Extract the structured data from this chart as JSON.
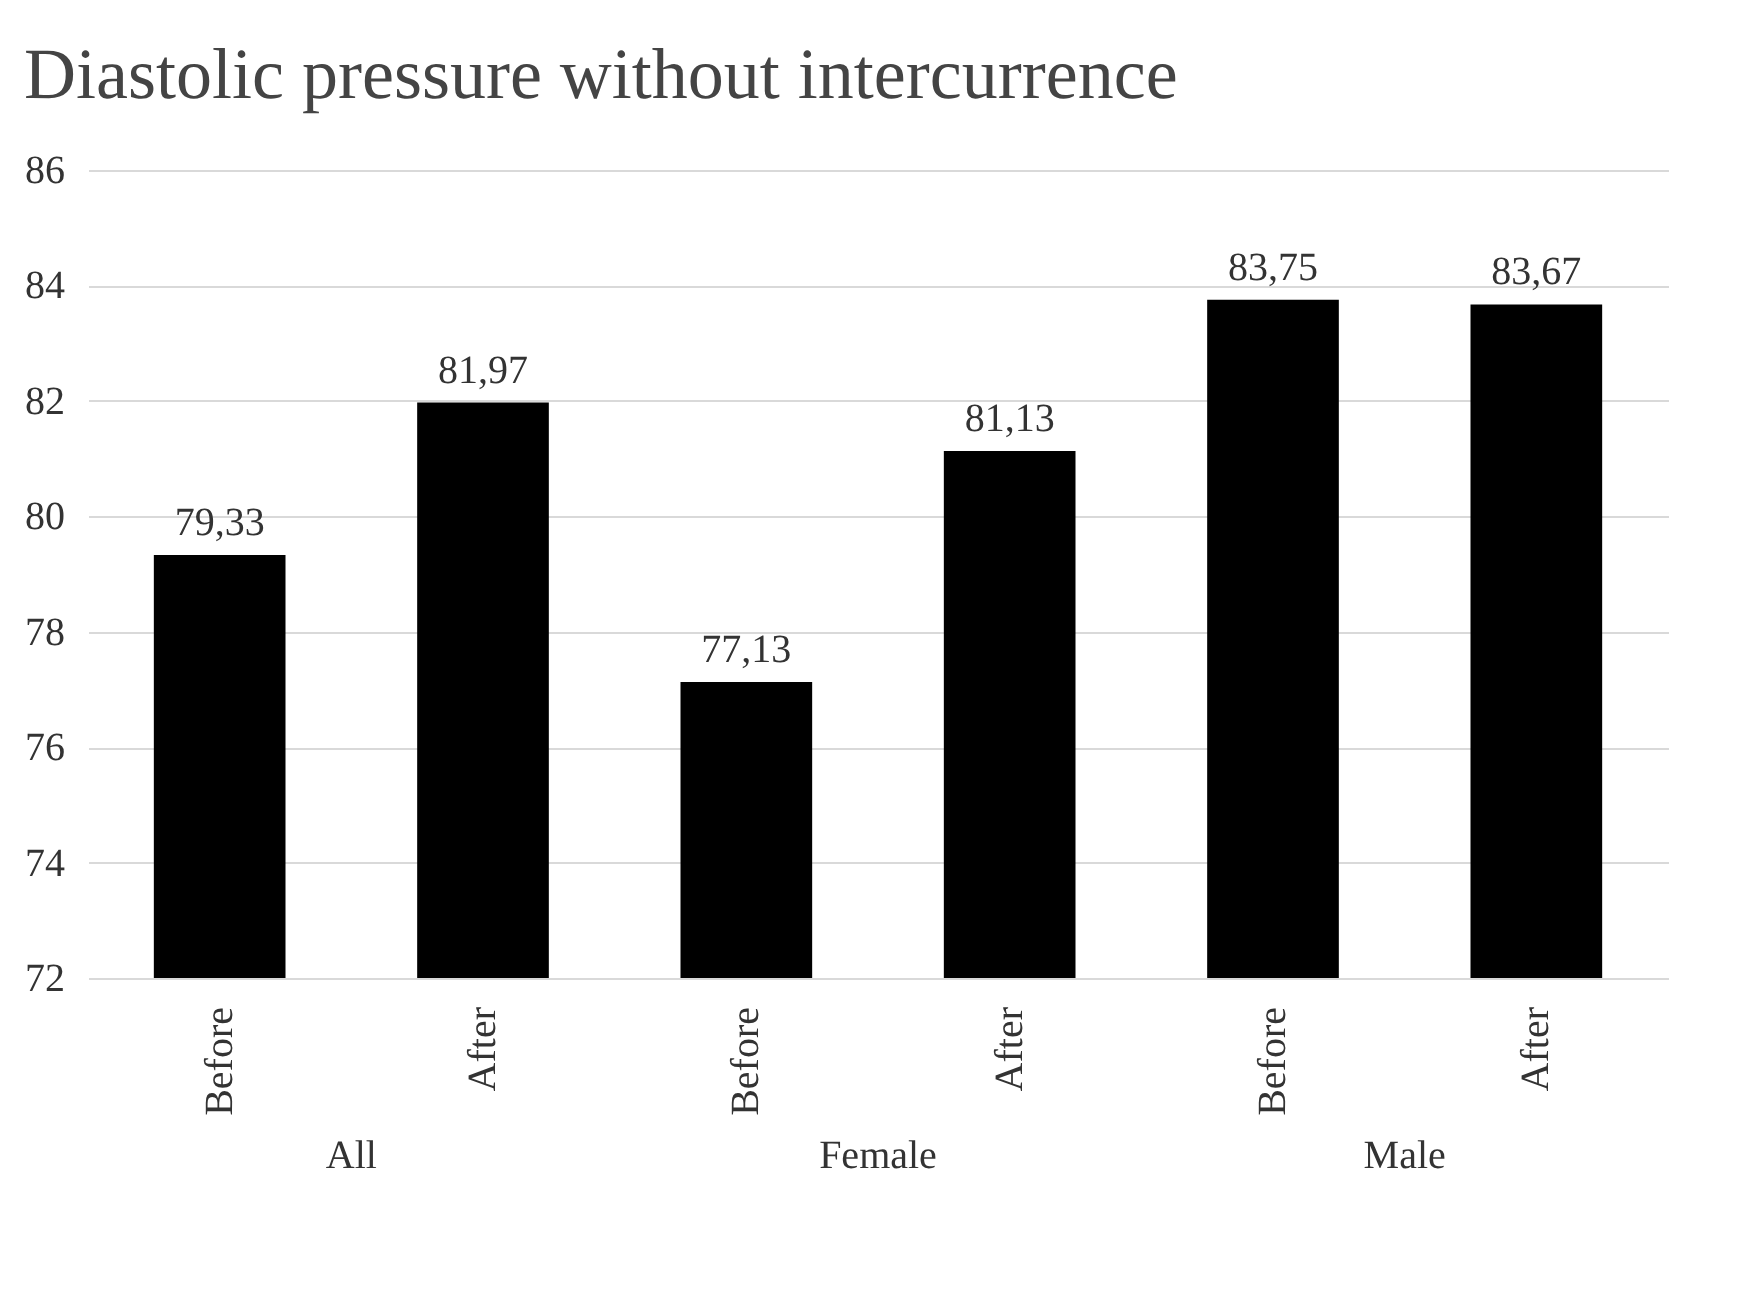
{
  "chart_data": {
    "type": "bar",
    "title": "Diastolic pressure without intercurrence",
    "categories": [
      "Before",
      "After",
      "Before",
      "After",
      "Before",
      "After"
    ],
    "values": [
      79.33,
      81.97,
      77.13,
      81.13,
      83.75,
      83.67
    ],
    "value_labels": [
      "79,33",
      "81,97",
      "77,13",
      "81,13",
      "83,75",
      "83,67"
    ],
    "colors": [
      "#000000",
      "#000000",
      "#000000",
      "#000000",
      "#000000",
      "#000000"
    ],
    "ylim": [
      72,
      86
    ],
    "yticks": [
      72,
      74,
      76,
      78,
      80,
      82,
      84,
      86
    ],
    "grid": "y",
    "annotations": [
      "All",
      "Female",
      "Male"
    ]
  }
}
